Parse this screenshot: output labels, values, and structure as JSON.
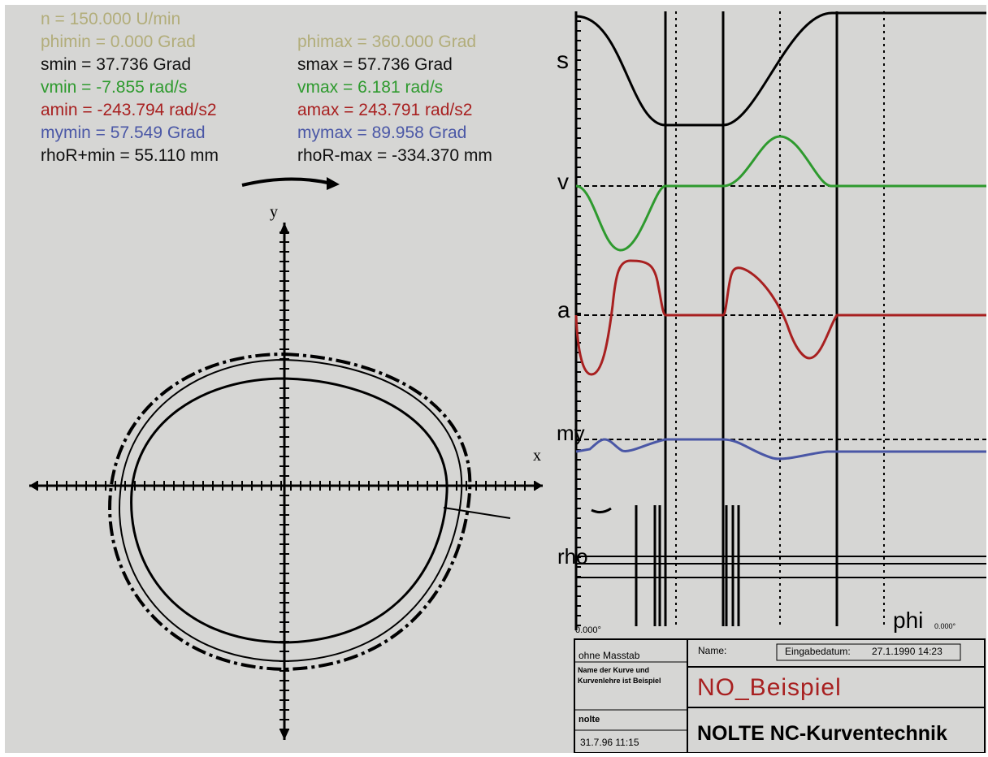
{
  "parameters": {
    "n": "n = 150.000 U/min",
    "phimin": "phimin = 0.000 Grad",
    "phimax": "phimax = 360.000 Grad",
    "smin": "smin = 37.736 Grad",
    "smax": "smax = 57.736 Grad",
    "vmin": "vmin = -7.855 rad/s",
    "vmax": "vmax = 6.181 rad/s",
    "amin": "amin = -243.794 rad/s2",
    "amax": "amax = 243.791 rad/s2",
    "mymin": "mymin = 57.549 Grad",
    "mymax": "mymax = 89.958 Grad",
    "rhoRplusmin": "rhoR+min = 55.110 mm",
    "rhoRminusmax": "rhoR-max = -334.370 mm"
  },
  "colors": {
    "olive": "#b2ad7a",
    "black": "#111111",
    "green": "#2e9a2e",
    "red": "#a82020",
    "blue": "#4a57a6",
    "background": "#d6d6d4"
  },
  "cam_plot": {
    "x_label": "x",
    "y_label": "y",
    "rotation_indicator": "clockwise-arrow"
  },
  "motion_chart": {
    "labels": {
      "s": "s",
      "v": "v",
      "a": "a",
      "my": "my",
      "rho": "rho",
      "phi": "phi",
      "phi_end": "0.000°",
      "phi_start": "0.000°"
    }
  },
  "title_block": {
    "scale": "ohne Masstab",
    "name_label": "Name:",
    "date_label": "Eingabedatum:",
    "date_value": "27.1.1990 14:23",
    "name_value": "NO_Beispiel",
    "description": "Name der Kurve und Kurvenlehre ist Beispiel",
    "user": "nolte",
    "timestamp": "31.7.96 11:15",
    "company": "NOLTE NC-Kurventechnik"
  }
}
